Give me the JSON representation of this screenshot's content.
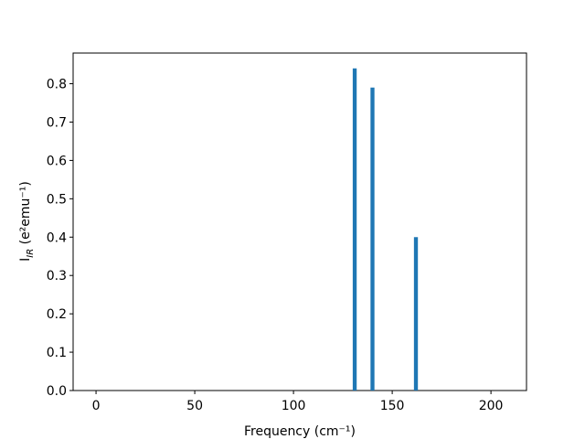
{
  "chart_data": {
    "type": "bar",
    "xlabel": "Frequency (cm⁻¹)",
    "ylabel": [
      "I",
      "IR",
      " (e²emu⁻¹)"
    ],
    "x": [
      131,
      140,
      162
    ],
    "values": [
      0.84,
      0.79,
      0.4
    ],
    "color": "#1f77b4",
    "xlim": [
      -11.6,
      218
    ],
    "ylim": [
      0,
      0.88
    ],
    "xticks": [
      0,
      50,
      100,
      150,
      200
    ],
    "yticks": [
      {
        "value": 0,
        "label": "0.0"
      },
      0.1,
      0.2,
      0.3,
      0.4,
      0.5,
      0.6,
      0.7,
      0.8
    ]
  }
}
